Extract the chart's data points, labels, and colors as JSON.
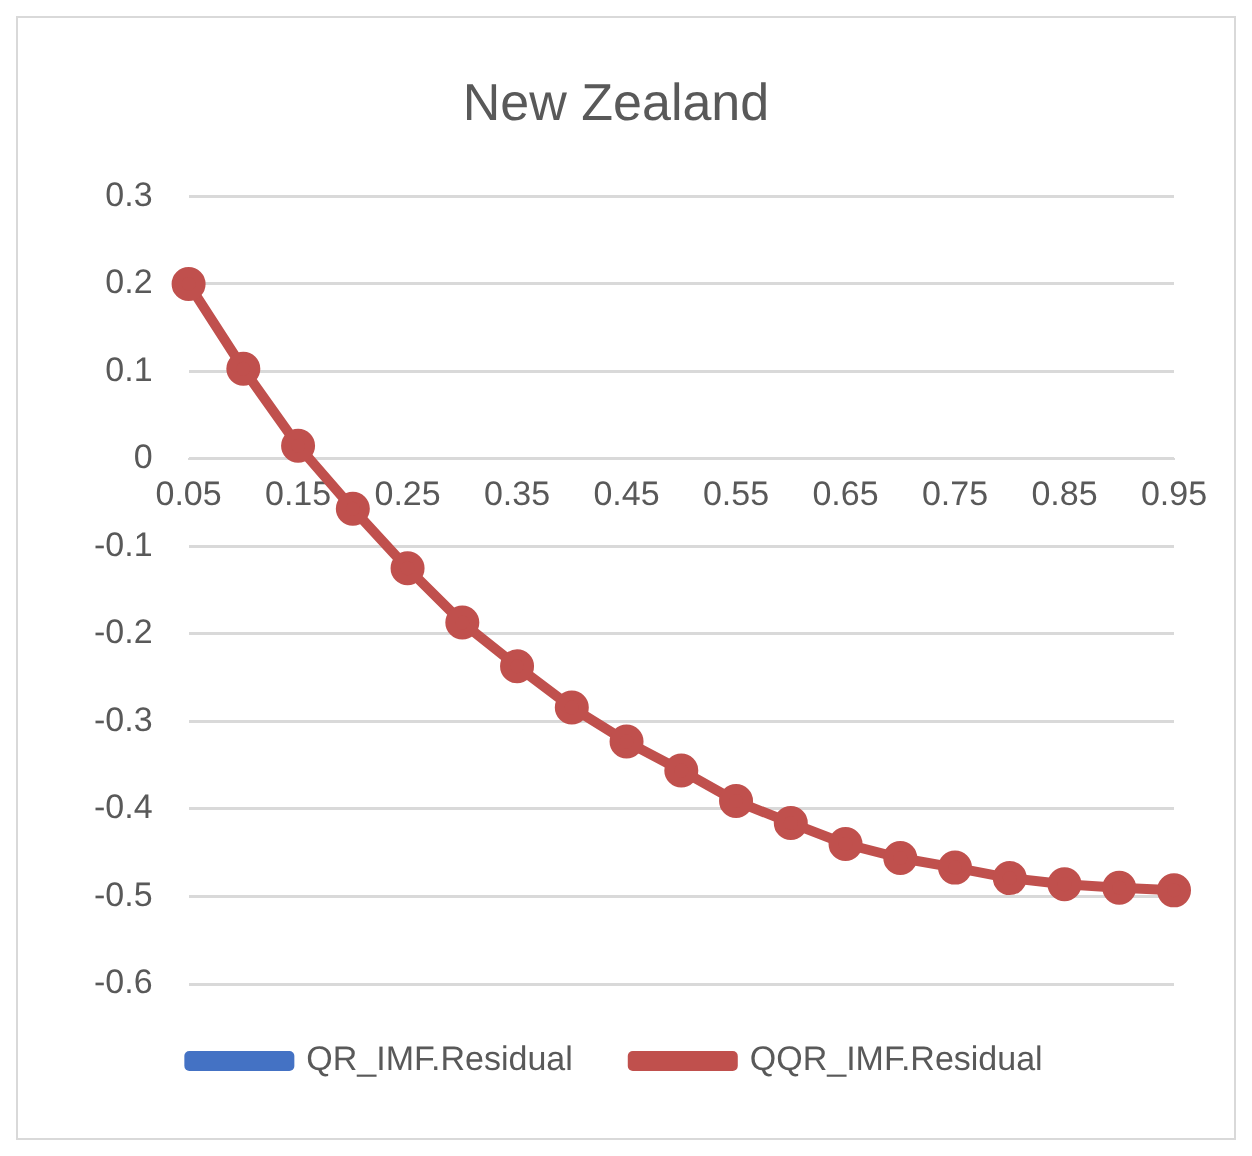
{
  "chart_data": {
    "type": "line",
    "title": "New Zealand",
    "categories": [
      "0.05",
      null,
      "0.15",
      null,
      "0.25",
      null,
      "0.35",
      null,
      "0.45",
      null,
      "0.55",
      null,
      "0.65",
      null,
      "0.75",
      null,
      "0.85",
      null,
      "0.95"
    ],
    "series": [
      {
        "name": "QR_IMF.Residual",
        "color": "#4472c4",
        "values": [
          null,
          null,
          null,
          null,
          null,
          null,
          null,
          null,
          null,
          null,
          null,
          null,
          null,
          null,
          null,
          null,
          null,
          null,
          null
        ]
      },
      {
        "name": "QQR_IMF.Residual",
        "color": "#c0504d",
        "values": [
          0.2,
          0.103,
          0.015,
          -0.057,
          -0.125,
          -0.187,
          -0.237,
          -0.284,
          -0.323,
          -0.356,
          -0.391,
          -0.416,
          -0.44,
          -0.456,
          -0.467,
          -0.479,
          -0.486,
          -0.49,
          -0.493
        ]
      }
    ],
    "ylim": [
      -0.6,
      0.3
    ],
    "yticks": [
      -0.6,
      -0.5,
      -0.4,
      -0.3,
      -0.2,
      -0.1,
      0,
      0.1,
      0.2,
      0.3
    ],
    "grid": "y",
    "legend": "bottom",
    "marker": "circle",
    "line_style": "solid"
  }
}
